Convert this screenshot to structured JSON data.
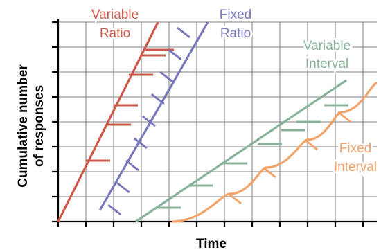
{
  "chart_data": {
    "type": "line",
    "xlabel": "Time",
    "ylabel_lines": [
      "Cumulative number",
      "of responses"
    ],
    "grid": true,
    "colors": {
      "variable_ratio": "#cc5a4a",
      "fixed_ratio": "#7777bb",
      "variable_interval": "#88b399",
      "fixed_interval": "#f2a36a",
      "grid": "#999999",
      "axis": "#000000"
    },
    "series": [
      {
        "id": "variable_ratio",
        "name_lines": [
          "Variable",
          "Ratio"
        ],
        "style": "straight-line",
        "line": [
          [
            0,
            0
          ],
          [
            3.6,
            7.2
          ]
        ],
        "tick_style": "horizontal",
        "ticks": [
          [
            1.0,
            2.2
          ],
          [
            1.75,
            3.5
          ],
          [
            2.0,
            4.2
          ],
          [
            2.55,
            5.3
          ],
          [
            3.0,
            6.0
          ],
          [
            3.15,
            6.2
          ],
          [
            3.3,
            6.2
          ]
        ]
      },
      {
        "id": "fixed_ratio",
        "name_lines": [
          "Fixed",
          "Ratio"
        ],
        "style": "straight-line",
        "line": [
          [
            1.5,
            0.4
          ],
          [
            5.4,
            7.2
          ]
        ],
        "tick_style": "diagonal",
        "ticks": [
          [
            1.81,
            0.6
          ],
          [
            2.12,
            1.4
          ],
          [
            2.45,
            2.2
          ],
          [
            2.75,
            3.0
          ],
          [
            3.05,
            3.8
          ],
          [
            3.37,
            4.6
          ],
          [
            3.68,
            5.4
          ],
          [
            3.99,
            6.2
          ],
          [
            4.3,
            7.0
          ]
        ]
      },
      {
        "id": "variable_interval",
        "name_lines": [
          "Variable",
          "Interval"
        ],
        "style": "straight-line",
        "line": [
          [
            2.8,
            0
          ],
          [
            10.4,
            5.1
          ]
        ],
        "tick_style": "horizontal",
        "ticks": [
          [
            3.55,
            0.5
          ],
          [
            4.7,
            1.3
          ],
          [
            5.95,
            2.1
          ],
          [
            7.2,
            2.8
          ],
          [
            8.05,
            3.3
          ],
          [
            8.6,
            3.6
          ],
          [
            9.6,
            4.2
          ]
        ]
      },
      {
        "id": "fixed_interval",
        "name_lines": [
          "Fixed",
          "Interval"
        ],
        "style": "scallop",
        "start": [
          4.1,
          0
        ],
        "scallops": [
          {
            "t": [
              4.1,
              6.2
            ],
            "y": [
              0.0,
              1.0
            ]
          },
          {
            "t": [
              6.2,
              7.5
            ],
            "y": [
              1.0,
              1.95
            ]
          },
          {
            "t": [
              7.5,
              9.0
            ],
            "y": [
              1.95,
              2.95
            ]
          },
          {
            "t": [
              9.0,
              10.2
            ],
            "y": [
              2.95,
              3.95
            ]
          },
          {
            "t": [
              10.2,
              11.5
            ],
            "y": [
              3.95,
              5.0
            ]
          }
        ],
        "tick_style": "diagonal",
        "ticks": [
          [
            6.15,
            1.0
          ],
          [
            7.4,
            1.95
          ],
          [
            8.9,
            2.95
          ],
          [
            10.1,
            3.95
          ]
        ]
      }
    ],
    "xlim": [
      0,
      11.5
    ],
    "ylim": [
      0,
      7.2
    ],
    "x_ticks": 12,
    "y_ticks": 8
  }
}
